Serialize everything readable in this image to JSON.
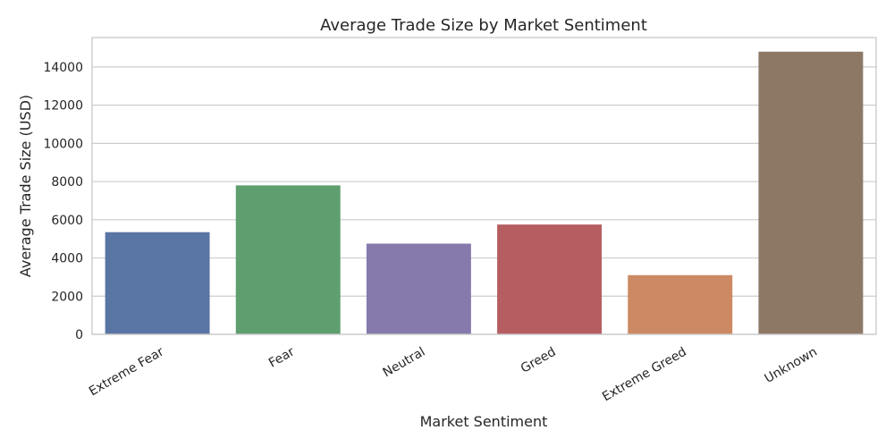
{
  "chart_data": {
    "type": "bar",
    "title": "Average Trade Size by Market Sentiment",
    "xlabel": "Market Sentiment",
    "ylabel": "Average Trade Size (USD)",
    "categories": [
      "Extreme Fear",
      "Fear",
      "Neutral",
      "Greed",
      "Extreme Greed",
      "Unknown"
    ],
    "values": [
      5350,
      7800,
      4750,
      5750,
      3100,
      14800
    ],
    "colors": [
      "#5975a4",
      "#5f9e6e",
      "#857aab",
      "#b55d60",
      "#cc8963",
      "#8d7866"
    ],
    "ylim": [
      0,
      15540
    ],
    "yticks": [
      0,
      2000,
      4000,
      6000,
      8000,
      10000,
      12000,
      14000
    ],
    "ytick_labels": [
      "0",
      "2000",
      "4000",
      "6000",
      "8000",
      "10000",
      "12000",
      "14000"
    ],
    "grid": "horizontal",
    "style": "whitegrid"
  }
}
